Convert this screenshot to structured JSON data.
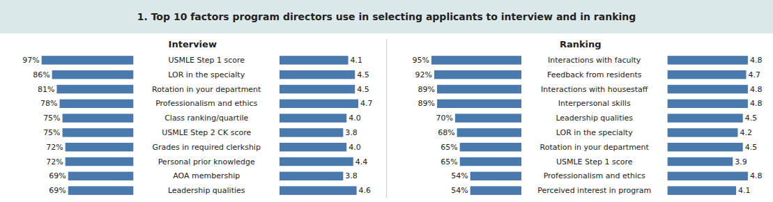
{
  "chart_data": [
    {
      "type": "bar",
      "orientation": "horizontal",
      "title": "1. Top 10 factors program directors use in selecting applicants to interview and in ranking",
      "subtitle": "Interview",
      "categories": [
        "USMLE Step 1 score",
        "LOR in the specialty",
        "Rotation in your department",
        "Professionalism and ethics",
        "Class ranking/quartile",
        "USMLE Step 2 CK score",
        "Grades in required clerkship",
        "Personal prior knowledge",
        "AOA membership",
        "Leadership qualities"
      ],
      "series": [
        {
          "color": "#4a7aad",
          "values": [
            97,
            86,
            81,
            78,
            75,
            75,
            72,
            72,
            69,
            69
          ],
          "value_labels": [
            "97%",
            "86%",
            "81%",
            "78%",
            "75%",
            "75%",
            "72%",
            "72%",
            "69%",
            "69%"
          ]
        },
        {
          "color": "#4a7aad",
          "axis": "y2",
          "values": [
            4.1,
            4.5,
            4.5,
            4.7,
            4.0,
            3.8,
            4.0,
            4.4,
            3.8,
            4.6
          ],
          "value_labels": [
            "4.1",
            "4.5",
            "4.5",
            "4.7",
            "4.0",
            "3.8",
            "4.0",
            "4.4",
            "3.8",
            "4.6"
          ]
        }
      ],
      "xlim": [
        0,
        110
      ],
      "y2lim": [
        0,
        5.8
      ],
      "data_labels": true,
      "tick_labels": false,
      "grid": false
    },
    {
      "type": "bar",
      "orientation": "horizontal",
      "subtitle": "Ranking",
      "categories": [
        "Interactions with faculty",
        "Feedback from residents",
        "Interactions with housestaff",
        "Interpersonal skills",
        "Leadership qualities",
        "LOR in the specialty",
        "Rotation in your department",
        "USMLE Step 1 score",
        "Professionalism and ethics",
        "Perceived interest in program"
      ],
      "series": [
        {
          "color": "#4a7aad",
          "values": [
            95,
            92,
            89,
            89,
            70,
            68,
            65,
            65,
            54,
            54
          ],
          "value_labels": [
            "95%",
            "92%",
            "89%",
            "89%",
            "70%",
            "68%",
            "65%",
            "65%",
            "54%",
            "54%"
          ]
        },
        {
          "color": "#4a7aad",
          "axis": "y2",
          "values": [
            4.8,
            4.7,
            4.8,
            4.8,
            4.5,
            4.2,
            4.5,
            3.9,
            4.8,
            4.1
          ],
          "value_labels": [
            "4.8",
            "4.7",
            "4.8",
            "4.8",
            "4.5",
            "4.2",
            "4.5",
            "3.9",
            "4.8",
            "4.1"
          ]
        }
      ],
      "xlim": [
        0,
        110
      ],
      "y2lim": [
        0,
        5.8
      ],
      "data_labels": true,
      "tick_labels": false,
      "grid": false
    }
  ]
}
